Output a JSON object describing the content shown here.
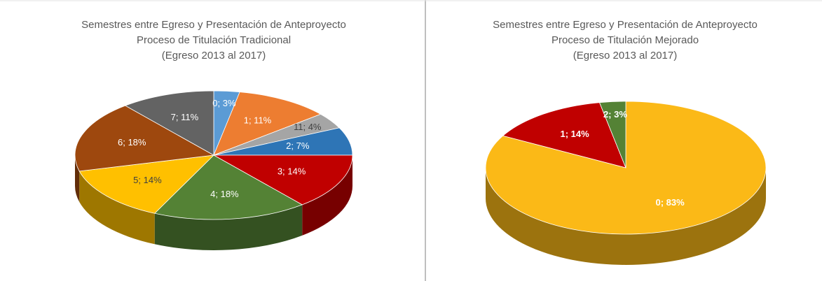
{
  "chart_data": [
    {
      "type": "pie3d",
      "title": "Semestres entre Egreso y Presentación de Anteproyecto",
      "subtitle": [
        "Proceso de Titulación Tradicional",
        "(Egreso  2013 al 2017)"
      ],
      "categories": [
        "0",
        "1",
        "11",
        "2",
        "3",
        "4",
        "5",
        "6",
        "7"
      ],
      "values": [
        3,
        11,
        4,
        7,
        14,
        18,
        14,
        18,
        11
      ],
      "value_labels": [
        "0; 3%",
        "1; 11%",
        "11; 4%",
        "2; 7%",
        "3; 14%",
        "4; 18%",
        "5; 14%",
        "6; 18%",
        "7; 11%"
      ],
      "colors": [
        "#5b9bd5",
        "#ed7d31",
        "#a5a5a5",
        "#2e75b6",
        "#c00000",
        "#548235",
        "#ffc000",
        "#9e480e",
        "#636363"
      ]
    },
    {
      "type": "pie3d",
      "title": "Semestres entre Egreso y Presentación de Anteproyecto",
      "subtitle": [
        "Proceso de Titulación Mejorado",
        "(Egreso  2013 al 2017)"
      ],
      "categories": [
        "0",
        "1",
        "2"
      ],
      "values": [
        83,
        14,
        3
      ],
      "value_labels": [
        "0; 83%",
        "1; 14%",
        "2; 3%"
      ],
      "colors": [
        "#fbb917",
        "#c00000",
        "#548235"
      ]
    }
  ]
}
